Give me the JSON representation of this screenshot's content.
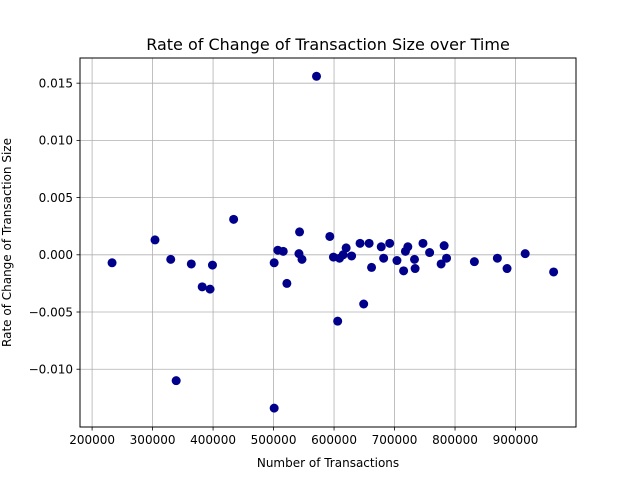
{
  "chart_data": {
    "type": "scatter",
    "title": "Rate of Change of Transaction Size over Time",
    "xlabel": "Number of Transactions",
    "ylabel": "Rate of Change of Transaction Size",
    "xlim": [
      180000,
      1000000
    ],
    "ylim": [
      -0.01505,
      0.0172
    ],
    "xticks": [
      200000,
      300000,
      400000,
      500000,
      600000,
      700000,
      800000,
      900000
    ],
    "yticks": [
      -0.01,
      -0.005,
      0.0,
      0.005,
      0.01,
      0.015
    ],
    "xtick_labels": [
      "200000",
      "300000",
      "400000",
      "500000",
      "600000",
      "700000",
      "800000",
      "900000"
    ],
    "ytick_labels": [
      "−0.010",
      "−0.005",
      "0.000",
      "0.005",
      "0.010",
      "0.015"
    ],
    "grid": true,
    "marker_color": "#00008b",
    "points": [
      {
        "x": 233000,
        "y": -0.0007
      },
      {
        "x": 304000,
        "y": 0.0013
      },
      {
        "x": 330000,
        "y": -0.0004
      },
      {
        "x": 339000,
        "y": -0.011
      },
      {
        "x": 364000,
        "y": -0.0008
      },
      {
        "x": 382000,
        "y": -0.0028
      },
      {
        "x": 395000,
        "y": -0.003
      },
      {
        "x": 399000,
        "y": -0.0009
      },
      {
        "x": 434000,
        "y": 0.0031
      },
      {
        "x": 501000,
        "y": -0.0007
      },
      {
        "x": 501000,
        "y": -0.0134
      },
      {
        "x": 507000,
        "y": 0.0004
      },
      {
        "x": 516000,
        "y": 0.0003
      },
      {
        "x": 522000,
        "y": -0.0025
      },
      {
        "x": 542000,
        "y": 0.0001
      },
      {
        "x": 543000,
        "y": 0.002
      },
      {
        "x": 547000,
        "y": -0.0004
      },
      {
        "x": 571000,
        "y": 0.0156
      },
      {
        "x": 593000,
        "y": 0.0016
      },
      {
        "x": 599000,
        "y": -0.0002
      },
      {
        "x": 606000,
        "y": -0.0058
      },
      {
        "x": 609000,
        "y": -0.0003
      },
      {
        "x": 615000,
        "y": 0.0
      },
      {
        "x": 620000,
        "y": 0.0006
      },
      {
        "x": 629000,
        "y": -0.0001
      },
      {
        "x": 643000,
        "y": 0.001
      },
      {
        "x": 649000,
        "y": -0.0043
      },
      {
        "x": 658000,
        "y": 0.001
      },
      {
        "x": 662000,
        "y": -0.0011
      },
      {
        "x": 678000,
        "y": 0.0007
      },
      {
        "x": 682000,
        "y": -0.0003
      },
      {
        "x": 692000,
        "y": 0.001
      },
      {
        "x": 704000,
        "y": -0.0005
      },
      {
        "x": 715000,
        "y": -0.0014
      },
      {
        "x": 718000,
        "y": 0.0003
      },
      {
        "x": 722000,
        "y": 0.0007
      },
      {
        "x": 733000,
        "y": -0.0004
      },
      {
        "x": 734000,
        "y": -0.0012
      },
      {
        "x": 747000,
        "y": 0.001
      },
      {
        "x": 758000,
        "y": 0.0002
      },
      {
        "x": 777000,
        "y": -0.0008
      },
      {
        "x": 782000,
        "y": 0.0008
      },
      {
        "x": 786000,
        "y": -0.0003
      },
      {
        "x": 832000,
        "y": -0.0006
      },
      {
        "x": 870000,
        "y": -0.0003
      },
      {
        "x": 886000,
        "y": -0.0012
      },
      {
        "x": 916000,
        "y": 0.0001
      },
      {
        "x": 963000,
        "y": -0.0015
      }
    ]
  }
}
